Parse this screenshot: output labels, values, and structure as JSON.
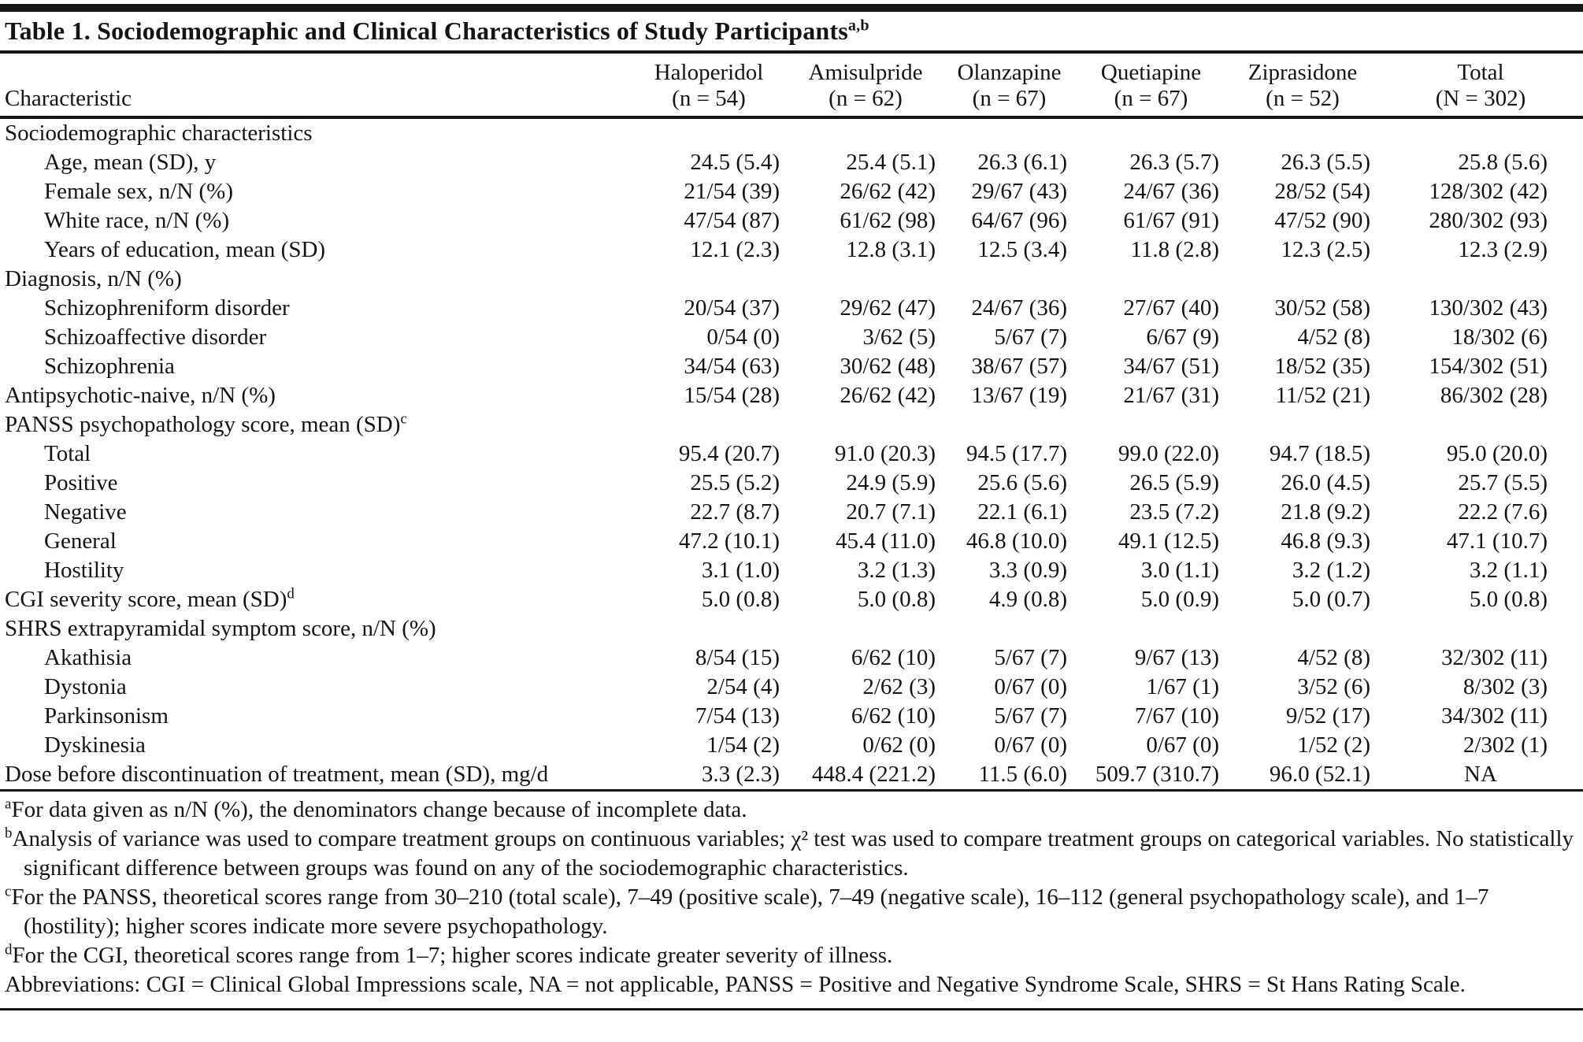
{
  "page": {
    "background": "#ffffff",
    "text_color": "#141414",
    "rule_color": "#161616"
  },
  "table": {
    "title": "Table 1. Sociodemographic and Clinical Characteristics of Study Participants",
    "title_superscript": "a,b",
    "characteristic_header": "Characteristic",
    "columns": [
      {
        "drug": "Haloperidol",
        "n": "(n = 54)"
      },
      {
        "drug": "Amisulpride",
        "n": "(n = 62)"
      },
      {
        "drug": "Olanzapine",
        "n": "(n = 67)"
      },
      {
        "drug": "Quetiapine",
        "n": "(n = 67)"
      },
      {
        "drug": "Ziprasidone",
        "n": "(n = 52)"
      },
      {
        "drug": "Total",
        "n": "(N = 302)"
      }
    ],
    "rows": [
      {
        "label": "Sociodemographic characteristics",
        "indent": 0,
        "sup": "",
        "values": []
      },
      {
        "label": "Age, mean (SD), y",
        "indent": 1,
        "sup": "",
        "values": [
          "24.5 (5.4)",
          "25.4 (5.1)",
          "26.3 (6.1)",
          "26.3 (5.7)",
          "26.3 (5.5)",
          "25.8 (5.6)"
        ]
      },
      {
        "label": "Female sex, n/N (%)",
        "indent": 1,
        "sup": "",
        "values": [
          "21/54 (39)",
          "26/62 (42)",
          "29/67 (43)",
          "24/67 (36)",
          "28/52 (54)",
          "128/302 (42)"
        ]
      },
      {
        "label": "White race, n/N (%)",
        "indent": 1,
        "sup": "",
        "values": [
          "47/54 (87)",
          "61/62 (98)",
          "64/67 (96)",
          "61/67 (91)",
          "47/52 (90)",
          "280/302 (93)"
        ]
      },
      {
        "label": "Years of education, mean (SD)",
        "indent": 1,
        "sup": "",
        "values": [
          "12.1 (2.3)",
          "12.8 (3.1)",
          "12.5 (3.4)",
          "11.8 (2.8)",
          "12.3 (2.5)",
          "12.3 (2.9)"
        ]
      },
      {
        "label": "Diagnosis, n/N (%)",
        "indent": 0,
        "sup": "",
        "values": []
      },
      {
        "label": "Schizophreniform disorder",
        "indent": 1,
        "sup": "",
        "values": [
          "20/54 (37)",
          "29/62 (47)",
          "24/67 (36)",
          "27/67 (40)",
          "30/52 (58)",
          "130/302 (43)"
        ]
      },
      {
        "label": "Schizoaffective disorder",
        "indent": 1,
        "sup": "",
        "values": [
          "0/54 (0)",
          "3/62 (5)",
          "5/67 (7)",
          "6/67 (9)",
          "4/52 (8)",
          "18/302 (6)"
        ]
      },
      {
        "label": "Schizophrenia",
        "indent": 1,
        "sup": "",
        "values": [
          "34/54 (63)",
          "30/62 (48)",
          "38/67 (57)",
          "34/67 (51)",
          "18/52 (35)",
          "154/302 (51)"
        ]
      },
      {
        "label": "Antipsychotic-naive, n/N (%)",
        "indent": 0,
        "sup": "",
        "values": [
          "15/54 (28)",
          "26/62 (42)",
          "13/67 (19)",
          "21/67 (31)",
          "11/52 (21)",
          "86/302 (28)"
        ]
      },
      {
        "label": "PANSS psychopathology score, mean (SD)",
        "indent": 0,
        "sup": "c",
        "values": []
      },
      {
        "label": "Total",
        "indent": 1,
        "sup": "",
        "values": [
          "95.4 (20.7)",
          "91.0 (20.3)",
          "94.5 (17.7)",
          "99.0 (22.0)",
          "94.7 (18.5)",
          "95.0 (20.0)"
        ]
      },
      {
        "label": "Positive",
        "indent": 1,
        "sup": "",
        "values": [
          "25.5 (5.2)",
          "24.9 (5.9)",
          "25.6 (5.6)",
          "26.5 (5.9)",
          "26.0 (4.5)",
          "25.7 (5.5)"
        ]
      },
      {
        "label": "Negative",
        "indent": 1,
        "sup": "",
        "values": [
          "22.7 (8.7)",
          "20.7 (7.1)",
          "22.1 (6.1)",
          "23.5 (7.2)",
          "21.8 (9.2)",
          "22.2 (7.6)"
        ]
      },
      {
        "label": "General",
        "indent": 1,
        "sup": "",
        "values": [
          "47.2 (10.1)",
          "45.4 (11.0)",
          "46.8 (10.0)",
          "49.1 (12.5)",
          "46.8 (9.3)",
          "47.1 (10.7)"
        ]
      },
      {
        "label": "Hostility",
        "indent": 1,
        "sup": "",
        "values": [
          "3.1 (1.0)",
          "3.2 (1.3)",
          "3.3 (0.9)",
          "3.0 (1.1)",
          "3.2 (1.2)",
          "3.2 (1.1)"
        ]
      },
      {
        "label": "CGI severity score, mean (SD)",
        "indent": 0,
        "sup": "d",
        "values": [
          "5.0 (0.8)",
          "5.0 (0.8)",
          "4.9 (0.8)",
          "5.0 (0.9)",
          "5.0 (0.7)",
          "5.0 (0.8)"
        ]
      },
      {
        "label": "SHRS extrapyramidal symptom score, n/N (%)",
        "indent": 0,
        "sup": "",
        "values": []
      },
      {
        "label": "Akathisia",
        "indent": 1,
        "sup": "",
        "values": [
          "8/54 (15)",
          "6/62 (10)",
          "5/67 (7)",
          "9/67 (13)",
          "4/52 (8)",
          "32/302 (11)"
        ]
      },
      {
        "label": "Dystonia",
        "indent": 1,
        "sup": "",
        "values": [
          "2/54 (4)",
          "2/62 (3)",
          "0/67 (0)",
          "1/67 (1)",
          "3/52 (6)",
          "8/302 (3)"
        ]
      },
      {
        "label": "Parkinsonism",
        "indent": 1,
        "sup": "",
        "values": [
          "7/54 (13)",
          "6/62 (10)",
          "5/67 (7)",
          "7/67 (10)",
          "9/52 (17)",
          "34/302 (11)"
        ]
      },
      {
        "label": "Dyskinesia",
        "indent": 1,
        "sup": "",
        "values": [
          "1/54 (2)",
          "0/62 (0)",
          "0/67 (0)",
          "0/67 (0)",
          "1/52 (2)",
          "2/302 (1)"
        ]
      },
      {
        "label": "Dose before discontinuation of treatment, mean (SD), mg/d",
        "indent": 0,
        "sup": "",
        "values": [
          "3.3 (2.3)",
          "448.4 (221.2)",
          "11.5 (6.0)",
          "509.7 (310.7)",
          "96.0 (52.1)",
          "NA"
        ]
      }
    ],
    "footnotes": [
      {
        "sup": "a",
        "text": "For data given as n/N (%), the denominators change because of incomplete data."
      },
      {
        "sup": "b",
        "text": "Analysis of variance was used to compare treatment groups on continuous variables; χ² test was used to compare treatment groups on categorical variables. No statistically significant difference between groups was found on any of the sociodemographic characteristics."
      },
      {
        "sup": "c",
        "text": "For the PANSS, theoretical scores range from 30–210 (total scale), 7–49 (positive scale), 7–49 (negative scale), 16–112 (general psychopathology scale), and 1–7 (hostility); higher scores indicate more severe psychopathology."
      },
      {
        "sup": "d",
        "text": "For the CGI, theoretical scores range from 1–7; higher scores indicate greater severity of illness."
      },
      {
        "sup": "",
        "text": "Abbreviations: CGI = Clinical Global Impressions scale, NA = not applicable, PANSS = Positive and Negative Syndrome Scale, SHRS = St Hans Rating Scale."
      }
    ]
  }
}
